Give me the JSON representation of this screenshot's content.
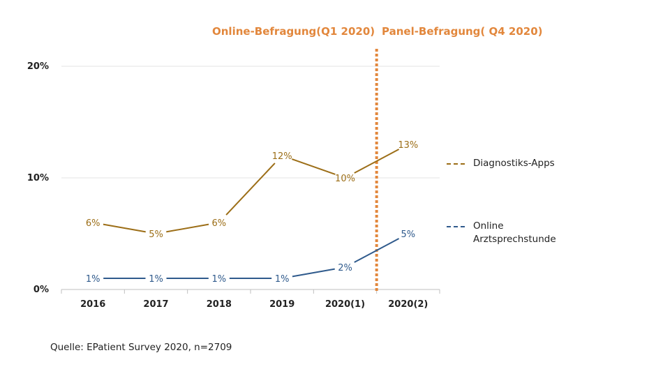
{
  "chart_data": {
    "type": "line",
    "categories": [
      "2016",
      "2017",
      "2018",
      "2019",
      "2020(1)",
      "2020(2)"
    ],
    "series": [
      {
        "name": "Diagnostiks-Apps",
        "values": [
          6,
          5,
          6,
          12,
          10,
          13
        ],
        "labels": [
          "6%",
          "5%",
          "6%",
          "12%",
          "10%",
          "13%"
        ],
        "color": "#9C6E17"
      },
      {
        "name": "Online Arztsprechstunde",
        "values": [
          1,
          1,
          1,
          1,
          2,
          5
        ],
        "labels": [
          "1%",
          "1%",
          "1%",
          "1%",
          "2%",
          "5%"
        ],
        "color": "#2F5A8C"
      }
    ],
    "yticks": [
      {
        "value": 0,
        "label": "0%"
      },
      {
        "value": 10,
        "label": "10%"
      },
      {
        "value": 20,
        "label": "20%"
      }
    ],
    "ylim": [
      0,
      20
    ],
    "grid": true,
    "legend_position": "right",
    "divider_color": "#E2873C",
    "periods": [
      "Online-Befragung(Q1 2020)",
      "Panel-Befragung( Q4 2020)"
    ],
    "source": "Quelle: EPatient Survey 2020, n=2709"
  }
}
